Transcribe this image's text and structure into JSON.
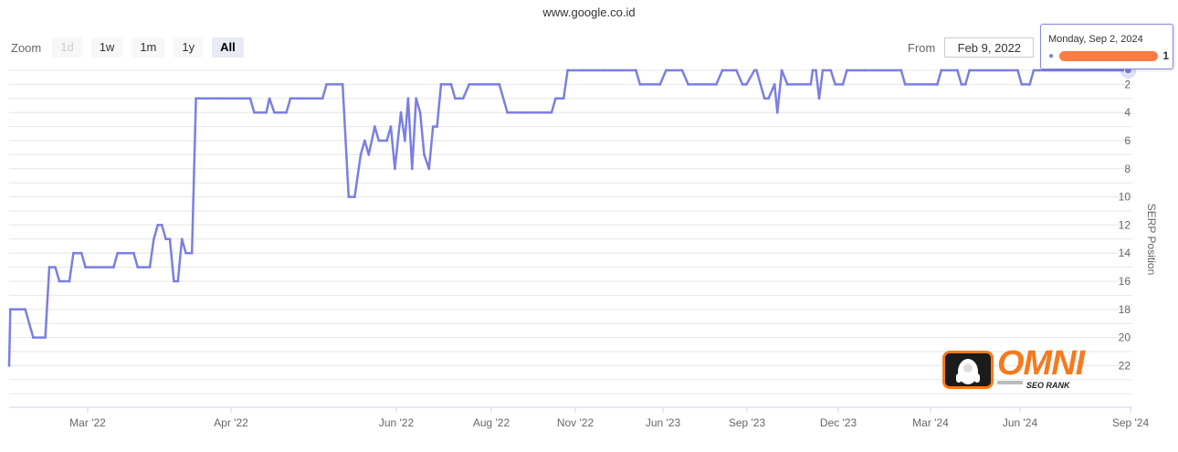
{
  "title": "www.google.co.id",
  "zoom": {
    "label": "Zoom",
    "buttons": [
      {
        "label": "1d",
        "state": "disabled"
      },
      {
        "label": "1w",
        "state": "normal"
      },
      {
        "label": "1m",
        "state": "normal"
      },
      {
        "label": "1y",
        "state": "normal"
      },
      {
        "label": "All",
        "state": "selected"
      }
    ]
  },
  "range": {
    "from_label": "From",
    "from_value": "Feb 9, 2022"
  },
  "tooltip": {
    "date": "Monday, Sep 2, 2024",
    "value": "1",
    "series_label_redacted": true
  },
  "logo": {
    "word": "OMNI",
    "subtitle": "SEO RANK"
  },
  "colors": {
    "series": "#7b7fe2",
    "grid": "#e6e6e6",
    "axis": "#ccd6eb",
    "brand_orange": "#f47a1f",
    "redaction": "#ff7c44"
  },
  "chart_data": {
    "type": "line",
    "title": "www.google.co.id",
    "xlabel": "",
    "ylabel": "SERP Position",
    "y_reversed": true,
    "y_axis_side": "right",
    "ylim": [
      1,
      24
    ],
    "y_ticks": [
      "2",
      "4",
      "6",
      "8",
      "10",
      "12",
      "14",
      "16",
      "18",
      "20",
      "22"
    ],
    "x_ticks": [
      "Mar '22",
      "Apr '22",
      "Jun '22",
      "Aug '22",
      "Nov '22",
      "Jun '23",
      "Sep '23",
      "Dec '23",
      "Mar '24",
      "Jun '24",
      "Sep '24"
    ],
    "grid": true,
    "legend": "none",
    "series": [
      {
        "points": [
          [
            0,
            22
          ],
          [
            0.3,
            18
          ],
          [
            4,
            18
          ],
          [
            6,
            20
          ],
          [
            9,
            20
          ],
          [
            10,
            15
          ],
          [
            11.5,
            15
          ],
          [
            12.5,
            16
          ],
          [
            15,
            16
          ],
          [
            16,
            14
          ],
          [
            18,
            14
          ],
          [
            19,
            15
          ],
          [
            26,
            15
          ],
          [
            27,
            14
          ],
          [
            31,
            14
          ],
          [
            32,
            15
          ],
          [
            35,
            15
          ],
          [
            36,
            13
          ],
          [
            37,
            12
          ],
          [
            38,
            12
          ],
          [
            39,
            13
          ],
          [
            40,
            13
          ],
          [
            41,
            16
          ],
          [
            42,
            16
          ],
          [
            43,
            13
          ],
          [
            44,
            14
          ],
          [
            45.5,
            14
          ],
          [
            46.5,
            3
          ],
          [
            53,
            3
          ],
          [
            60,
            3
          ],
          [
            61,
            4
          ],
          [
            64,
            4
          ],
          [
            64.8,
            3
          ],
          [
            66,
            4
          ],
          [
            69,
            4
          ],
          [
            70,
            3
          ],
          [
            78,
            3
          ],
          [
            79,
            2
          ],
          [
            83,
            2
          ],
          [
            84.5,
            10
          ],
          [
            86,
            10
          ],
          [
            87.5,
            7
          ],
          [
            88.5,
            6
          ],
          [
            89.5,
            7
          ],
          [
            91,
            5
          ],
          [
            92,
            6
          ],
          [
            94,
            6
          ],
          [
            95,
            5
          ],
          [
            96,
            8
          ],
          [
            97.5,
            4
          ],
          [
            98.5,
            6
          ],
          [
            99.3,
            3
          ],
          [
            100.3,
            8
          ],
          [
            101.3,
            3
          ],
          [
            102.3,
            4
          ],
          [
            103.3,
            7
          ],
          [
            104.5,
            8
          ],
          [
            105.5,
            5
          ],
          [
            106.5,
            5
          ],
          [
            107.5,
            2
          ],
          [
            110,
            2
          ],
          [
            111,
            3
          ],
          [
            113,
            3
          ],
          [
            114.5,
            2
          ],
          [
            122,
            2
          ],
          [
            124,
            4
          ],
          [
            129,
            4
          ],
          [
            135,
            4
          ],
          [
            136,
            3
          ],
          [
            138,
            3
          ],
          [
            139,
            1
          ],
          [
            143,
            1
          ],
          [
            148,
            1
          ],
          [
            156,
            1
          ],
          [
            157,
            2
          ],
          [
            162,
            2
          ],
          [
            163.5,
            1
          ],
          [
            167.5,
            1
          ],
          [
            169,
            2
          ],
          [
            176,
            2
          ],
          [
            177.5,
            1
          ],
          [
            181,
            1
          ],
          [
            182.5,
            2
          ],
          [
            183.5,
            2
          ],
          [
            185.5,
            1
          ],
          [
            186,
            1
          ],
          [
            188,
            3
          ],
          [
            189,
            3
          ],
          [
            190.5,
            2
          ],
          [
            191.2,
            4
          ],
          [
            192.3,
            1
          ],
          [
            193.7,
            2
          ],
          [
            199.5,
            2
          ],
          [
            200,
            1
          ],
          [
            200.8,
            1
          ],
          [
            201.6,
            3
          ],
          [
            202.5,
            1
          ],
          [
            204.5,
            1
          ],
          [
            205.6,
            2
          ],
          [
            207.5,
            2
          ],
          [
            208.5,
            1
          ],
          [
            213,
            1
          ],
          [
            222,
            1
          ],
          [
            223,
            2
          ],
          [
            231,
            2
          ],
          [
            232,
            1
          ],
          [
            236,
            1
          ],
          [
            237,
            2
          ],
          [
            238,
            2
          ],
          [
            239,
            1
          ],
          [
            251,
            1
          ],
          [
            252,
            2
          ],
          [
            254,
            2
          ],
          [
            255,
            1
          ],
          [
            267,
            1
          ],
          [
            275,
            1
          ],
          [
            278.5,
            1
          ]
        ]
      }
    ]
  }
}
